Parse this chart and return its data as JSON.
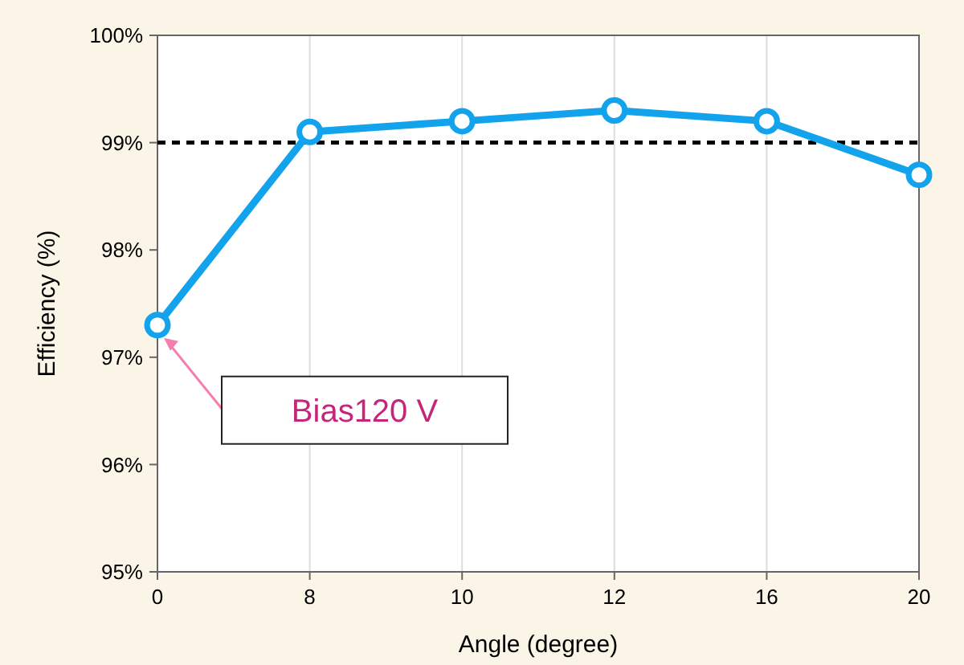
{
  "chart_data": {
    "type": "line",
    "xlabel": "Angle (degree)",
    "ylabel": "Efficiency (%)",
    "categories": [
      "0",
      "8",
      "10",
      "12",
      "16",
      "20"
    ],
    "series": [
      {
        "color": "#12a3ec",
        "values": [
          97.3,
          99.1,
          99.2,
          99.3,
          99.2,
          98.7
        ]
      }
    ],
    "ylim": [
      95,
      100
    ],
    "yticks": [
      {
        "value": 95,
        "label": "95%"
      },
      {
        "value": 96,
        "label": "96%"
      },
      {
        "value": 97,
        "label": "97%"
      },
      {
        "value": 98,
        "label": "98%"
      },
      {
        "value": 99,
        "label": "99%"
      },
      {
        "value": 100,
        "label": "100%"
      }
    ],
    "ref_lines": [
      {
        "axis": "y",
        "value": 99,
        "color": "#000000",
        "line_style": "dashed"
      }
    ],
    "annotations": [
      "Bias120 V"
    ],
    "grid": "x",
    "marker": "circle",
    "line_style": "solid"
  }
}
